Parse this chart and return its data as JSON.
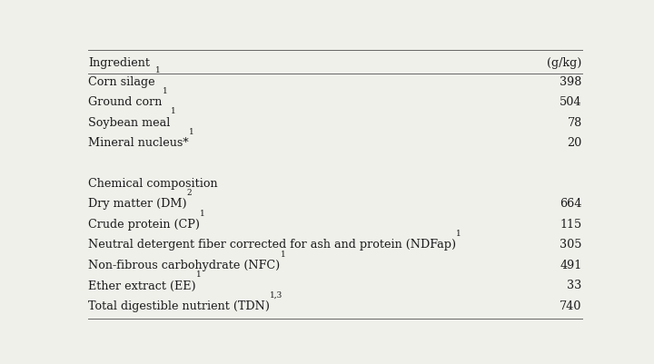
{
  "header_col1": "Ingredient",
  "header_col2": "(g/kg)",
  "rows": [
    {
      "label": "Corn silage",
      "sup": "1",
      "value": "398"
    },
    {
      "label": "Ground corn",
      "sup": "1",
      "value": "504"
    },
    {
      "label": "Soybean meal",
      "sup": "1",
      "value": "78"
    },
    {
      "label": "Mineral nucleus*",
      "sup": "1",
      "value": "20"
    },
    {
      "label": "",
      "sup": "",
      "value": ""
    },
    {
      "label": "Chemical composition",
      "sup": "",
      "value": ""
    },
    {
      "label": "Dry matter (DM)",
      "sup": "2",
      "value": "664"
    },
    {
      "label": "Crude protein (CP)",
      "sup": "1",
      "value": "115"
    },
    {
      "label": "Neutral detergent fiber corrected for ash and protein (NDFap)",
      "sup": "1",
      "value": "305"
    },
    {
      "label": "Non-fibrous carbohydrate (NFC)",
      "sup": "1",
      "value": "491"
    },
    {
      "label": "Ether extract (EE)",
      "sup": "1",
      "value": "33"
    },
    {
      "label": "Total digestible nutrient (TDN)",
      "sup": "1,3",
      "value": "740"
    }
  ],
  "bg_color": "#f0f0eb",
  "text_color": "#1a1a1a",
  "font_size": 9.2,
  "header_font_size": 9.2,
  "sup_font_size": 6.5,
  "line_color": "#666666",
  "line_width": 0.7,
  "fig_width": 7.2,
  "fig_height": 4.02,
  "dpi": 100
}
